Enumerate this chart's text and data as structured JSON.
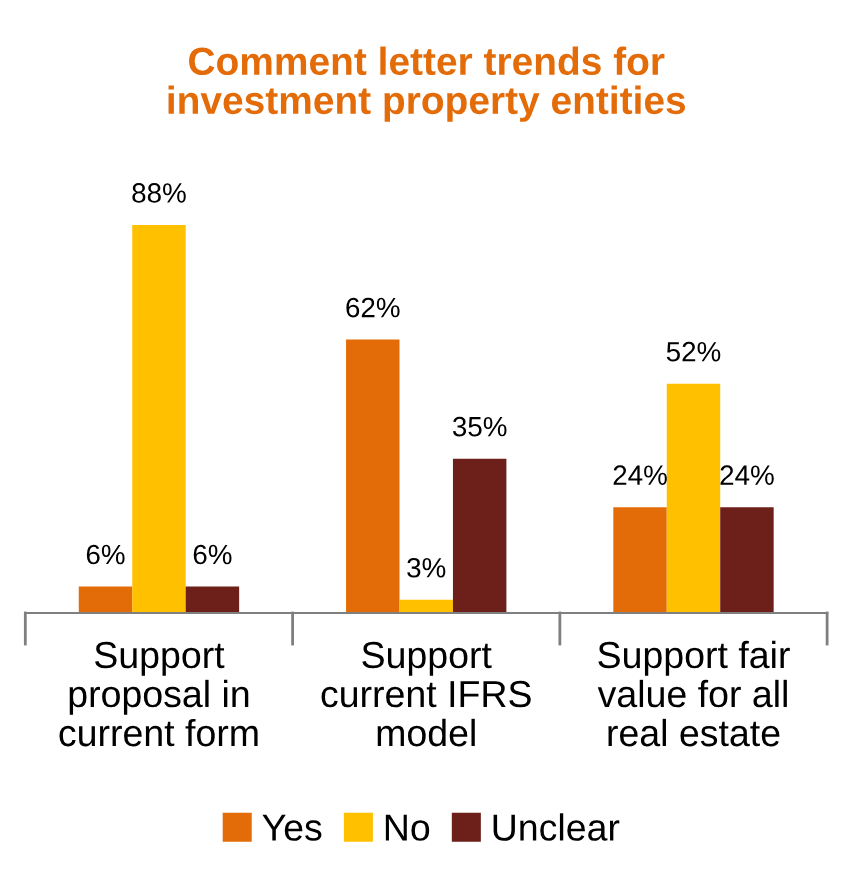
{
  "chart_data": {
    "type": "bar",
    "title": "Comment letter trends for\ninvestment property entities",
    "categories": [
      "Support\nproposal in\ncurrent form",
      "Support\ncurrent IFRS\nmodel",
      "Support fair\nvalue for all\nreal estate"
    ],
    "series": [
      {
        "name": "Yes",
        "color": "#e36c09",
        "values": [
          6,
          62,
          24
        ],
        "value_labels": [
          "6%",
          "62%",
          "24%"
        ]
      },
      {
        "name": "No",
        "color": "#ffc000",
        "values": [
          88,
          3,
          52
        ],
        "value_labels": [
          "88%",
          "3%",
          "52%"
        ]
      },
      {
        "name": "Unclear",
        "color": "#6d1f1a",
        "values": [
          6,
          35,
          24
        ],
        "value_labels": [
          "6%",
          "35%",
          "24%"
        ]
      }
    ],
    "legend": "bottom",
    "grid": false
  }
}
